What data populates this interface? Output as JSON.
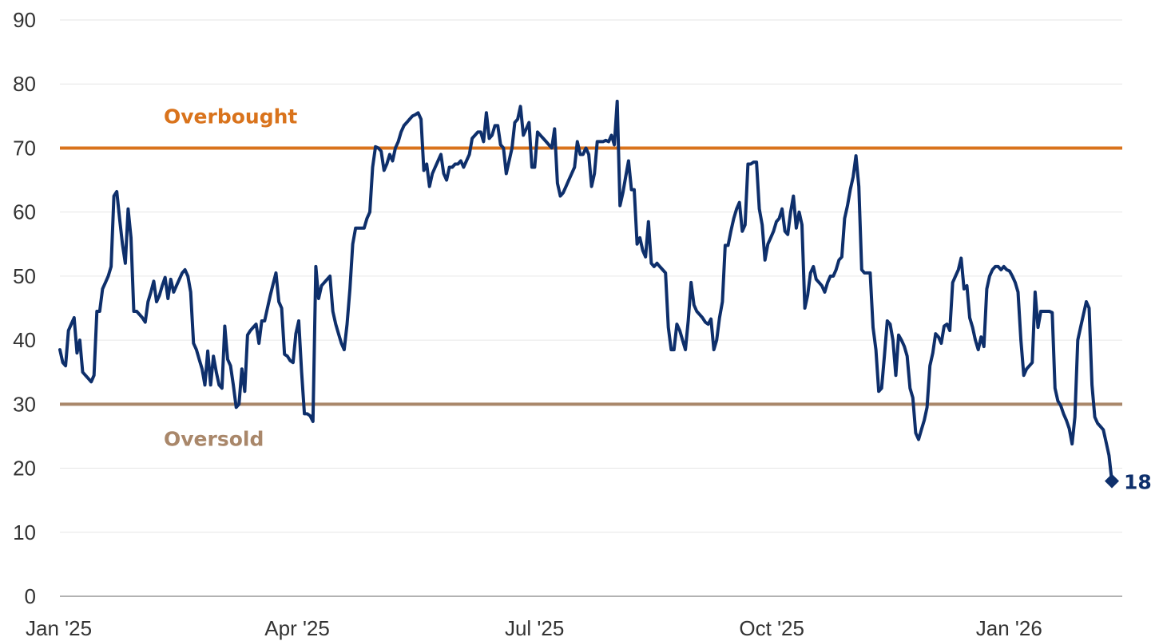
{
  "chart_data": {
    "type": "line",
    "ylim": [
      0,
      90
    ],
    "y_ticks": [
      0,
      10,
      20,
      30,
      40,
      50,
      60,
      70,
      80,
      90
    ],
    "grid": "horizontal",
    "x_ticks": [
      "Jan '25",
      "Apr '25",
      "Jul '25",
      "Oct '25",
      "Jan '26"
    ],
    "colors": {
      "series": "#0e2f6b",
      "overbought": "#d9731c",
      "oversold": "#a9876a",
      "grid": "#e6e6e6",
      "axis": "#999999"
    },
    "reference_lines": [
      {
        "label": "Overbought",
        "value": 70
      },
      {
        "label": "Oversold",
        "value": 30
      }
    ],
    "end_label": "18",
    "end_value": 18,
    "series": [
      {
        "values": [
          38.5,
          36.5,
          36,
          41.5,
          42.5,
          43.5,
          38,
          40,
          35,
          34.5,
          34,
          33.5,
          34.5,
          44.5,
          44.5,
          48,
          49,
          50,
          51.5,
          62.5,
          63.2,
          59,
          55,
          52,
          60.5,
          56,
          44.5,
          44.5,
          44,
          43.5,
          42.8,
          46,
          47.5,
          49.2,
          46,
          47,
          48.5,
          49.8,
          46.5,
          49.5,
          47.5,
          48.5,
          49.5,
          50.5,
          51,
          50,
          47.5,
          39.5,
          38.5,
          37,
          35.5,
          33,
          38.3,
          33,
          37.5,
          35,
          33,
          32.5,
          42.2,
          37,
          36,
          33,
          29.5,
          30,
          35.5,
          32,
          40.8,
          41.5,
          42,
          42.5,
          39.5,
          43,
          43,
          45,
          47,
          48.8,
          50.5,
          46,
          45,
          37.8,
          37.5,
          36.8,
          36.5,
          41,
          43,
          35,
          28.5,
          28.5,
          28.2,
          27.3,
          51.5,
          46.5,
          48.5,
          49,
          49.5,
          50,
          44.5,
          42.5,
          41,
          39.5,
          38.5,
          42.5,
          48,
          55,
          57.5,
          57.5,
          57.5,
          57.5,
          59,
          60,
          67,
          70.2,
          70,
          69.5,
          66.5,
          67.5,
          69,
          68,
          70,
          71,
          72.5,
          73.5,
          74,
          74.5,
          75,
          75.2,
          75.5,
          74.5,
          66.5,
          67.5,
          64,
          66,
          67,
          68,
          69,
          66,
          65,
          67,
          67,
          67.5,
          67.5,
          68,
          67,
          68,
          69,
          71.5,
          72,
          72.5,
          72.5,
          71,
          75.5,
          71.5,
          72,
          73.5,
          73.5,
          70.5,
          70,
          66,
          68,
          70,
          74,
          74.5,
          76.5,
          72,
          73,
          74,
          67,
          67,
          72.5,
          72,
          71.5,
          71,
          70.5,
          70,
          73,
          64.5,
          62.5,
          63,
          64,
          65,
          66,
          67,
          71,
          69,
          69,
          70,
          69,
          64,
          66,
          71,
          71,
          71,
          71.2,
          71,
          72,
          70.5,
          77.3,
          61,
          63,
          65.5,
          68,
          63.5,
          63.5,
          55,
          56,
          54,
          53,
          58.5,
          52,
          51.5,
          52,
          51.5,
          51,
          50.5,
          42,
          38.5,
          38.5,
          42.5,
          41.5,
          40,
          38.5,
          43,
          49,
          45.5,
          44.5,
          44,
          43.5,
          42.8,
          42.5,
          43.3,
          38.5,
          40,
          43.5,
          46,
          54.8,
          54.8,
          57,
          59,
          60.5,
          61.5,
          57,
          58,
          67.5,
          67.5,
          67.8,
          67.8,
          60.5,
          58,
          52.5,
          55,
          56,
          57,
          58.5,
          59,
          60.5,
          57,
          56.5,
          60,
          62.5,
          57.5,
          60,
          58,
          45,
          47,
          50.5,
          51.5,
          49.5,
          49,
          48.5,
          47.5,
          49,
          50,
          50,
          51,
          52.5,
          53,
          59,
          61,
          63.5,
          65.5,
          68.8,
          64,
          51,
          50.5,
          50.5,
          50.5,
          42,
          38.5,
          32,
          32.5,
          37.5,
          43,
          42.5,
          40,
          34.5,
          40.8,
          40,
          39,
          37.5,
          32.5,
          31,
          25.5,
          24.5,
          26,
          27.5,
          29.5,
          36,
          38,
          41,
          40.5,
          39.5,
          42.2,
          42.5,
          41.5,
          49,
          50,
          51,
          52.8,
          48,
          48.5,
          43.5,
          42,
          40,
          38.5,
          40.5,
          39,
          48,
          50,
          51,
          51.5,
          51.5,
          51,
          51.5,
          51,
          50.8,
          50,
          49,
          47.5,
          40,
          34.5,
          35.5,
          36,
          36.5,
          47.5,
          42,
          44.5,
          44.5,
          44.5,
          44.5,
          44.3,
          32.5,
          30.5,
          29.8,
          28.5,
          27.5,
          26.2,
          23.8,
          28,
          40,
          42,
          44,
          46,
          45,
          33,
          28,
          27,
          26.5,
          26,
          24,
          22,
          18
        ]
      }
    ]
  }
}
